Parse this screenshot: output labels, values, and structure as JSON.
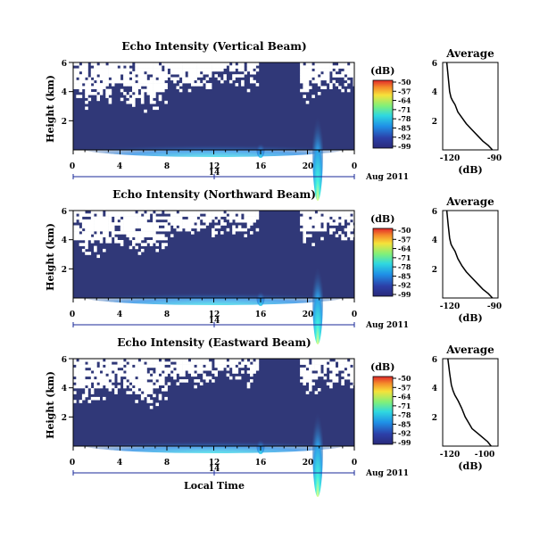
{
  "chart_data": [
    {
      "type": "heatmap",
      "title": "Echo Intensity (Vertical Beam)",
      "ylabel": "Height (km)",
      "xlabel": "",
      "x_ticks": [
        "0",
        "4",
        "8",
        "12",
        "16",
        "20",
        "0"
      ],
      "y_ticks": [
        "6",
        "4",
        "2"
      ],
      "date_ticks": [
        "14"
      ],
      "date_label": "Aug 2011",
      "xlim": [
        0,
        24
      ],
      "ylim": [
        0,
        6
      ],
      "colorbar": {
        "label": "(dB)",
        "ticks": [
          "-50",
          "-57",
          "-64",
          "-71",
          "-78",
          "-85",
          "-92",
          "-99"
        ],
        "range": [
          -99,
          -50
        ]
      },
      "profile": {
        "type": "line",
        "title": "Average",
        "xlabel": "(dB)",
        "x_ticks": [
          "-120",
          "-90"
        ],
        "y_ticks": [
          "6",
          "4",
          "2"
        ],
        "xlim": [
          -125,
          -85
        ],
        "ylim": [
          0,
          6
        ],
        "x": [
          -122,
          -121,
          -120,
          -119,
          -118,
          -116,
          -114,
          -111,
          -108,
          -104,
          -100,
          -96,
          -92,
          -89
        ],
        "y": [
          6.0,
          5.0,
          4.0,
          3.6,
          3.4,
          3.1,
          2.6,
          2.2,
          1.8,
          1.4,
          1.0,
          0.6,
          0.3,
          0.0
        ]
      }
    },
    {
      "type": "heatmap",
      "title": "Echo Intensity (Northward Beam)",
      "ylabel": "Height (km)",
      "xlabel": "",
      "x_ticks": [
        "0",
        "4",
        "8",
        "12",
        "16",
        "20",
        "0"
      ],
      "y_ticks": [
        "6",
        "4",
        "2"
      ],
      "date_ticks": [
        "14"
      ],
      "date_label": "Aug 2011",
      "xlim": [
        0,
        24
      ],
      "ylim": [
        0,
        6
      ],
      "colorbar": {
        "label": "(dB)",
        "ticks": [
          "-50",
          "-57",
          "-64",
          "-71",
          "-78",
          "-85",
          "-92",
          "-99"
        ],
        "range": [
          -99,
          -50
        ]
      },
      "profile": {
        "type": "line",
        "title": "Average",
        "xlabel": "(dB)",
        "x_ticks": [
          "-120",
          "-90"
        ],
        "y_ticks": [
          "6",
          "4",
          "2"
        ],
        "xlim": [
          -125,
          -85
        ],
        "ylim": [
          0,
          6
        ],
        "x": [
          -122,
          -121,
          -120,
          -119,
          -118,
          -116,
          -114,
          -111,
          -108,
          -104,
          -100,
          -96,
          -92,
          -89
        ],
        "y": [
          6.0,
          5.0,
          4.1,
          3.7,
          3.5,
          3.2,
          2.7,
          2.2,
          1.8,
          1.4,
          1.0,
          0.6,
          0.3,
          0.0
        ]
      }
    },
    {
      "type": "heatmap",
      "title": "Echo Intensity (Eastward Beam)",
      "ylabel": "Height (km)",
      "xlabel": "Local Time",
      "x_ticks": [
        "0",
        "4",
        "8",
        "12",
        "16",
        "20",
        "0"
      ],
      "y_ticks": [
        "6",
        "4",
        "2"
      ],
      "date_ticks": [
        "14"
      ],
      "date_label": "Aug 2011",
      "xlim": [
        0,
        24
      ],
      "ylim": [
        0,
        6
      ],
      "colorbar": {
        "label": "(dB)",
        "ticks": [
          "-50",
          "-57",
          "-64",
          "-71",
          "-78",
          "-85",
          "-92",
          "-99"
        ],
        "range": [
          -99,
          -50
        ]
      },
      "profile": {
        "type": "line",
        "title": "Average",
        "xlabel": "(dB)",
        "x_ticks": [
          "-120",
          "-100"
        ],
        "y_ticks": [
          "6",
          "4",
          "2"
        ],
        "xlim": [
          -125,
          -93
        ],
        "ylim": [
          0,
          6
        ],
        "x": [
          -122,
          -121,
          -120,
          -119,
          -118,
          -116,
          -114,
          -112,
          -110,
          -108,
          -105,
          -102,
          -99,
          -97
        ],
        "y": [
          6.0,
          5.0,
          4.2,
          3.8,
          3.5,
          3.1,
          2.6,
          2.0,
          1.6,
          1.2,
          0.9,
          0.6,
          0.3,
          0.0
        ]
      }
    }
  ],
  "colors": {
    "background_field": "#303878",
    "blank": "#ffffff",
    "profile_line": "#000000",
    "date_axis": "#1a2a9a"
  }
}
